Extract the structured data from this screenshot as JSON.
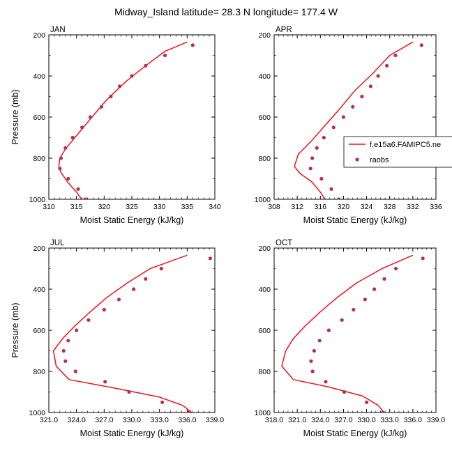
{
  "title": "Midway_Island  latitude= 28.3 N longitude= 177.4 W",
  "legend": {
    "model_label": "f.e15a6.FAMIPC5.ne",
    "obs_label": "raobs"
  },
  "colors": {
    "model_line": "#e8141c",
    "obs_marker": "#b0305a",
    "axis": "#000000"
  },
  "chart_data": [
    {
      "type": "line",
      "panel_label": "JAN",
      "xlabel": "Moist Static Energy (kJ/kg)",
      "ylabel": "Pressure (mb)",
      "xlim": [
        310,
        340
      ],
      "ylim": [
        200,
        1000
      ],
      "y_inverted": true,
      "xticks": [
        "310",
        "315",
        "320",
        "325",
        "330",
        "335",
        "340"
      ],
      "yticks": [
        "200",
        "400",
        "600",
        "800",
        "1000"
      ],
      "series": [
        {
          "name": "f.e15a6.FAMIPC5.ne",
          "style": "line",
          "points": [
            [
              335.0,
              235
            ],
            [
              331.0,
              280
            ],
            [
              327.5,
              350
            ],
            [
              324.0,
              425
            ],
            [
              320.5,
              515
            ],
            [
              317.5,
              610
            ],
            [
              315.0,
              690
            ],
            [
              313.0,
              755
            ],
            [
              312.0,
              800
            ],
            [
              311.8,
              840
            ],
            [
              312.2,
              870
            ],
            [
              313.5,
              920
            ],
            [
              315.0,
              965
            ],
            [
              316.2,
              1010
            ]
          ]
        },
        {
          "name": "raobs",
          "style": "markers",
          "points": [
            [
              336.0,
              250
            ],
            [
              331.0,
              300
            ],
            [
              327.5,
              350
            ],
            [
              325.0,
              400
            ],
            [
              322.8,
              450
            ],
            [
              321.2,
              500
            ],
            [
              319.5,
              550
            ],
            [
              317.5,
              600
            ],
            [
              316.0,
              650
            ],
            [
              314.3,
              700
            ],
            [
              313.0,
              750
            ],
            [
              312.2,
              800
            ],
            [
              312.0,
              850
            ],
            [
              313.5,
              900
            ],
            [
              315.3,
              950
            ],
            [
              316.6,
              1000
            ]
          ]
        }
      ]
    },
    {
      "type": "line",
      "panel_label": "APR",
      "xlabel": "Moist Static Energy (kJ/kg)",
      "ylabel": "",
      "xlim": [
        308,
        336
      ],
      "ylim": [
        200,
        1000
      ],
      "y_inverted": true,
      "xticks": [
        "308",
        "312",
        "316",
        "320",
        "324",
        "328",
        "332",
        "336"
      ],
      "yticks": [
        "200",
        "400",
        "600",
        "800",
        "1000"
      ],
      "series": [
        {
          "name": "f.e15a6.FAMIPC5.ne",
          "style": "line",
          "points": [
            [
              332.0,
              235
            ],
            [
              328.0,
              300
            ],
            [
              325.0,
              390
            ],
            [
              322.0,
              470
            ],
            [
              319.5,
              555
            ],
            [
              317.0,
              635
            ],
            [
              314.5,
              715
            ],
            [
              312.2,
              780
            ],
            [
              311.5,
              840
            ],
            [
              312.5,
              875
            ],
            [
              314.5,
              915
            ],
            [
              316.0,
              965
            ],
            [
              317.0,
              1010
            ]
          ]
        },
        {
          "name": "raobs",
          "style": "markers",
          "points": [
            [
              333.5,
              250
            ],
            [
              329.0,
              300
            ],
            [
              327.5,
              350
            ],
            [
              326.0,
              400
            ],
            [
              324.7,
              450
            ],
            [
              323.2,
              500
            ],
            [
              321.6,
              550
            ],
            [
              320.0,
              600
            ],
            [
              318.3,
              650
            ],
            [
              316.6,
              700
            ],
            [
              315.4,
              750
            ],
            [
              314.6,
              800
            ],
            [
              314.3,
              850
            ],
            [
              316.2,
              900
            ],
            [
              317.9,
              950
            ],
            [
              319.2,
              1000
            ]
          ]
        }
      ]
    },
    {
      "type": "line",
      "panel_label": "JUL",
      "xlabel": "Moist Static Energy (kJ/kg)",
      "ylabel": "Pressure (mb)",
      "xlim": [
        321,
        339
      ],
      "ylim": [
        200,
        1000
      ],
      "y_inverted": true,
      "xticks": [
        "321.0",
        "324.0",
        "327.0",
        "330.0",
        "333.0",
        "336.0",
        "339.0"
      ],
      "yticks": [
        "200",
        "400",
        "600",
        "800",
        "1000"
      ],
      "series": [
        {
          "name": "f.e15a6.FAMIPC5.ne",
          "style": "line",
          "points": [
            [
              336.0,
              235
            ],
            [
              332.0,
              300
            ],
            [
              329.5,
              370
            ],
            [
              327.3,
              440
            ],
            [
              325.5,
              510
            ],
            [
              323.8,
              580
            ],
            [
              322.5,
              640
            ],
            [
              321.5,
              700
            ],
            [
              321.8,
              775
            ],
            [
              323.2,
              840
            ],
            [
              328.0,
              880
            ],
            [
              333.0,
              925
            ],
            [
              335.5,
              965
            ],
            [
              336.8,
              1010
            ]
          ]
        },
        {
          "name": "raobs",
          "style": "markers",
          "points": [
            [
              338.5,
              250
            ],
            [
              333.2,
              300
            ],
            [
              331.5,
              350
            ],
            [
              330.2,
              400
            ],
            [
              328.6,
              450
            ],
            [
              327.0,
              500
            ],
            [
              325.3,
              550
            ],
            [
              324.0,
              600
            ],
            [
              323.1,
              650
            ],
            [
              322.6,
              700
            ],
            [
              322.8,
              750
            ],
            [
              323.9,
              800
            ],
            [
              327.1,
              850
            ],
            [
              329.7,
              900
            ],
            [
              333.3,
              950
            ],
            [
              336.2,
              1000
            ]
          ]
        }
      ]
    },
    {
      "type": "line",
      "panel_label": "OCT",
      "xlabel": "Moist Static Energy (kJ/kg)",
      "ylabel": "",
      "xlim": [
        318,
        339
      ],
      "ylim": [
        200,
        1000
      ],
      "y_inverted": true,
      "xticks": [
        "318.0",
        "321.0",
        "324.0",
        "327.0",
        "330.0",
        "333.0",
        "336.0",
        "339.0"
      ],
      "yticks": [
        "200",
        "400",
        "600",
        "800",
        "1000"
      ],
      "series": [
        {
          "name": "f.e15a6.FAMIPC5.ne",
          "style": "line",
          "points": [
            [
              336.0,
              235
            ],
            [
              332.0,
              300
            ],
            [
              328.7,
              370
            ],
            [
              326.2,
              440
            ],
            [
              324.0,
              510
            ],
            [
              322.0,
              580
            ],
            [
              320.5,
              640
            ],
            [
              319.5,
              700
            ],
            [
              319.0,
              775
            ],
            [
              320.5,
              840
            ],
            [
              325.0,
              875
            ],
            [
              329.5,
              920
            ],
            [
              331.5,
              965
            ],
            [
              332.5,
              1010
            ]
          ]
        },
        {
          "name": "raobs",
          "style": "markers",
          "points": [
            [
              337.3,
              250
            ],
            [
              333.8,
              300
            ],
            [
              332.3,
              350
            ],
            [
              331.0,
              400
            ],
            [
              329.8,
              450
            ],
            [
              328.3,
              500
            ],
            [
              326.8,
              550
            ],
            [
              325.1,
              600
            ],
            [
              323.9,
              650
            ],
            [
              323.2,
              700
            ],
            [
              322.8,
              750
            ],
            [
              323.0,
              800
            ],
            [
              324.7,
              850
            ],
            [
              327.1,
              900
            ],
            [
              330.0,
              950
            ],
            [
              332.1,
              1000
            ]
          ]
        }
      ]
    }
  ]
}
